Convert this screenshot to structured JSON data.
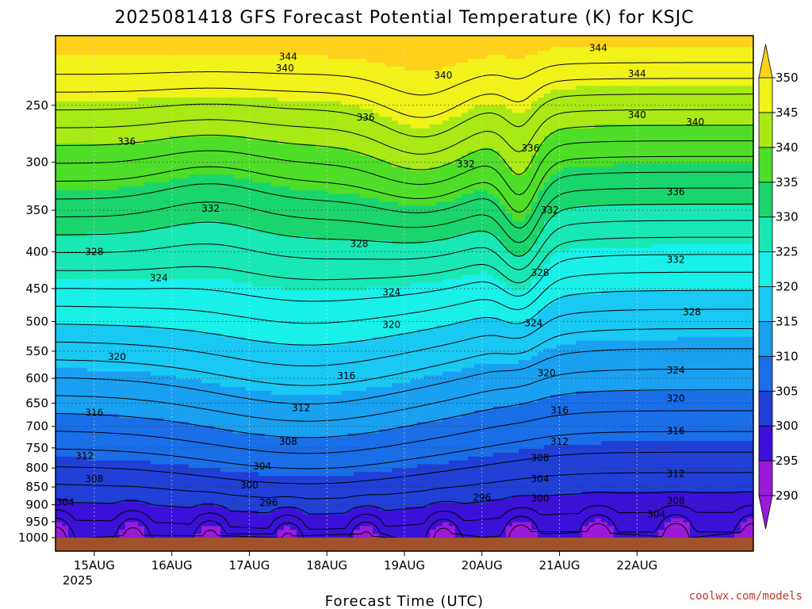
{
  "chart_data": {
    "type": "heatmap",
    "title": "2025081418 GFS Forecast Potential Temperature (K) for KSJC",
    "xlabel": "Forecast Time (UTC)",
    "ylabel": "",
    "x_ticks": [
      "15AUG",
      "16AUG",
      "17AUG",
      "18AUG",
      "19AUG",
      "20AUG",
      "21AUG",
      "22AUG"
    ],
    "x_year_label": "2025",
    "x_range_hours": [
      -12,
      204
    ],
    "y_ticks": [
      "250",
      "300",
      "350",
      "400",
      "450",
      "500",
      "550",
      "600",
      "650",
      "700",
      "750",
      "800",
      "850",
      "900",
      "950",
      "1000"
    ],
    "y_range_hPa": [
      200,
      1000
    ],
    "y_scale": "log-pressure",
    "grid": "dotted",
    "colorbar": {
      "levels": [
        290,
        295,
        300,
        305,
        310,
        315,
        320,
        325,
        330,
        335,
        340,
        345,
        350
      ],
      "colors": [
        "#9b1ad9",
        "#3b10d8",
        "#1f3fd6",
        "#1a6ee8",
        "#1aa0f0",
        "#1ac8f4",
        "#1af0ea",
        "#1ae8b4",
        "#1ad46c",
        "#4ede28",
        "#a9ea16",
        "#f0f21a",
        "#ffd11a"
      ],
      "tick_labels": [
        "290",
        "295",
        "300",
        "305",
        "310",
        "315",
        "320",
        "325",
        "330",
        "335",
        "340",
        "345",
        "350"
      ]
    },
    "contour_labels": [
      {
        "text": "344",
        "hour": 60,
        "p": 214
      },
      {
        "text": "344",
        "hour": 156,
        "p": 208
      },
      {
        "text": "344",
        "hour": 168,
        "p": 226
      },
      {
        "text": "340",
        "hour": 59,
        "p": 222
      },
      {
        "text": "340",
        "hour": 108,
        "p": 227
      },
      {
        "text": "340",
        "hour": 168,
        "p": 258
      },
      {
        "text": "340",
        "hour": 186,
        "p": 264
      },
      {
        "text": "336",
        "hour": 10,
        "p": 281
      },
      {
        "text": "336",
        "hour": 84,
        "p": 260
      },
      {
        "text": "336",
        "hour": 135,
        "p": 287
      },
      {
        "text": "336",
        "hour": 180,
        "p": 330
      },
      {
        "text": "332",
        "hour": 36,
        "p": 348
      },
      {
        "text": "332",
        "hour": 115,
        "p": 302
      },
      {
        "text": "332",
        "hour": 141,
        "p": 350
      },
      {
        "text": "332",
        "hour": 180,
        "p": 410
      },
      {
        "text": "328",
        "hour": 0,
        "p": 400
      },
      {
        "text": "328",
        "hour": 82,
        "p": 390
      },
      {
        "text": "328",
        "hour": 138,
        "p": 428
      },
      {
        "text": "328",
        "hour": 185,
        "p": 485
      },
      {
        "text": "324",
        "hour": 20,
        "p": 435
      },
      {
        "text": "324",
        "hour": 92,
        "p": 455
      },
      {
        "text": "324",
        "hour": 136,
        "p": 503
      },
      {
        "text": "324",
        "hour": 180,
        "p": 585
      },
      {
        "text": "320",
        "hour": 7,
        "p": 560
      },
      {
        "text": "320",
        "hour": 92,
        "p": 505
      },
      {
        "text": "320",
        "hour": 140,
        "p": 590
      },
      {
        "text": "320",
        "hour": 180,
        "p": 640
      },
      {
        "text": "316",
        "hour": 0,
        "p": 670
      },
      {
        "text": "316",
        "hour": 78,
        "p": 595
      },
      {
        "text": "316",
        "hour": 144,
        "p": 665
      },
      {
        "text": "316",
        "hour": 180,
        "p": 710
      },
      {
        "text": "312",
        "hour": -3,
        "p": 770
      },
      {
        "text": "312",
        "hour": 64,
        "p": 660
      },
      {
        "text": "312",
        "hour": 144,
        "p": 735
      },
      {
        "text": "312",
        "hour": 180,
        "p": 815
      },
      {
        "text": "308",
        "hour": 0,
        "p": 828
      },
      {
        "text": "308",
        "hour": 60,
        "p": 735
      },
      {
        "text": "308",
        "hour": 138,
        "p": 775
      },
      {
        "text": "308",
        "hour": 180,
        "p": 888
      },
      {
        "text": "304",
        "hour": -9,
        "p": 893
      },
      {
        "text": "304",
        "hour": 52,
        "p": 795
      },
      {
        "text": "304",
        "hour": 138,
        "p": 828
      },
      {
        "text": "304",
        "hour": 174,
        "p": 928
      },
      {
        "text": "300",
        "hour": 48,
        "p": 845
      },
      {
        "text": "300",
        "hour": 138,
        "p": 882
      },
      {
        "text": "296",
        "hour": 54,
        "p": 894
      },
      {
        "text": "296",
        "hour": 120,
        "p": 880
      }
    ]
  },
  "credit": "coolwx.com/models"
}
